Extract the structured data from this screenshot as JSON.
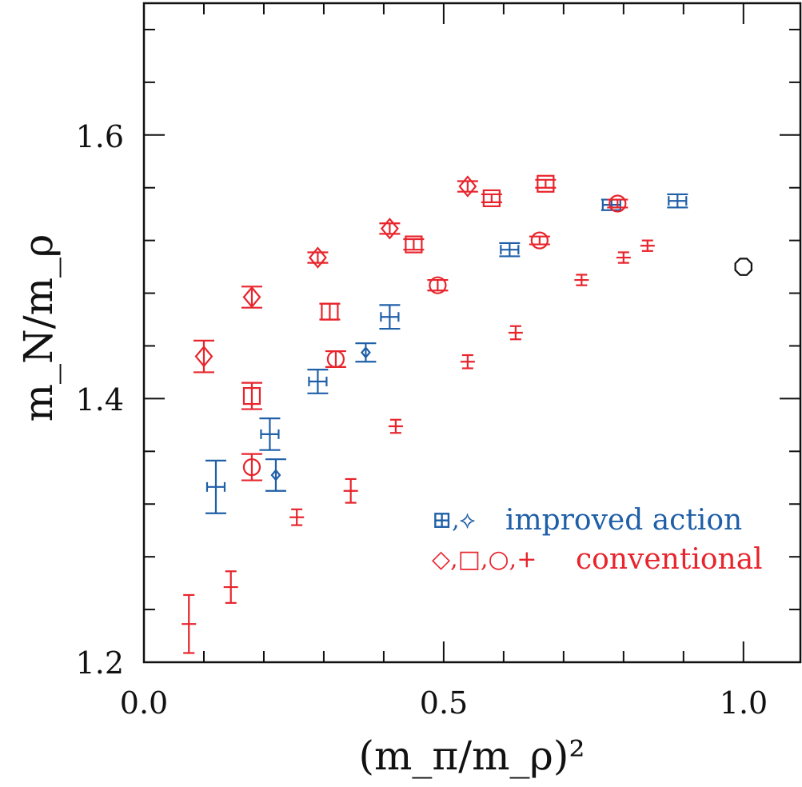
{
  "chart_data": {
    "type": "scatter",
    "xlabel": "(m_π/m_ρ)²",
    "ylabel": "m_N/m_ρ",
    "xlim": [
      0.0,
      1.095
    ],
    "ylim": [
      1.2,
      1.7
    ],
    "x_ticks": [
      "0.0",
      "0.5",
      "1.0"
    ],
    "y_ticks": [
      "1.2",
      "1.4",
      "1.6"
    ],
    "grid": false,
    "legend_position": "bottom-right",
    "legend": [
      {
        "symbols": "⊞,⟡",
        "label": "improved action",
        "color": "#1f5fa8"
      },
      {
        "symbols": "◇,□,○,+",
        "label": "conventional",
        "color": "#e8242c"
      }
    ],
    "series": [
      {
        "marker": "cross-box",
        "color": "#1f5fa8",
        "points": [
          {
            "x": 0.12,
            "y": 1.333,
            "err": 0.02
          },
          {
            "x": 0.21,
            "y": 1.373,
            "err": 0.012
          },
          {
            "x": 0.29,
            "y": 1.413,
            "err": 0.009
          },
          {
            "x": 0.41,
            "y": 1.462,
            "err": 0.009
          },
          {
            "x": 0.61,
            "y": 1.513,
            "err": 0.005
          },
          {
            "x": 0.78,
            "y": 1.547,
            "err": 0.004
          },
          {
            "x": 0.89,
            "y": 1.55,
            "err": 0.005
          }
        ]
      },
      {
        "marker": "diamond-small",
        "color": "#1f5fa8",
        "points": [
          {
            "x": 0.22,
            "y": 1.342,
            "err": 0.012
          },
          {
            "x": 0.37,
            "y": 1.435,
            "err": 0.007
          }
        ]
      },
      {
        "marker": "diamond",
        "color": "#e8242c",
        "points": [
          {
            "x": 0.1,
            "y": 1.432,
            "err": 0.012
          },
          {
            "x": 0.18,
            "y": 1.477,
            "err": 0.008
          },
          {
            "x": 0.29,
            "y": 1.507,
            "err": 0.004
          },
          {
            "x": 0.41,
            "y": 1.529,
            "err": 0.004
          },
          {
            "x": 0.54,
            "y": 1.561,
            "err": 0.004
          }
        ]
      },
      {
        "marker": "square",
        "color": "#e8242c",
        "points": [
          {
            "x": 0.18,
            "y": 1.402,
            "err": 0.01
          },
          {
            "x": 0.31,
            "y": 1.466,
            "err": 0.006
          },
          {
            "x": 0.45,
            "y": 1.517,
            "err": 0.004
          },
          {
            "x": 0.58,
            "y": 1.552,
            "err": 0.003
          },
          {
            "x": 0.67,
            "y": 1.563,
            "err": 0.003
          }
        ]
      },
      {
        "marker": "circle",
        "color": "#e8242c",
        "points": [
          {
            "x": 0.18,
            "y": 1.348,
            "err": 0.01
          },
          {
            "x": 0.32,
            "y": 1.43,
            "err": 0.006
          },
          {
            "x": 0.49,
            "y": 1.486,
            "err": 0.004
          },
          {
            "x": 0.66,
            "y": 1.52,
            "err": 0.003
          },
          {
            "x": 0.79,
            "y": 1.548,
            "err": 0.003
          }
        ]
      },
      {
        "marker": "plus",
        "color": "#e8242c",
        "points": [
          {
            "x": 0.075,
            "y": 1.229,
            "err": 0.022
          },
          {
            "x": 0.145,
            "y": 1.257,
            "err": 0.012
          },
          {
            "x": 0.255,
            "y": 1.31,
            "err": 0.006
          },
          {
            "x": 0.345,
            "y": 1.33,
            "err": 0.009
          },
          {
            "x": 0.42,
            "y": 1.379,
            "err": 0.005
          },
          {
            "x": 0.54,
            "y": 1.428,
            "err": 0.005
          },
          {
            "x": 0.62,
            "y": 1.45,
            "err": 0.005
          },
          {
            "x": 0.73,
            "y": 1.49,
            "err": 0.004
          },
          {
            "x": 0.8,
            "y": 1.507,
            "err": 0.004
          },
          {
            "x": 0.84,
            "y": 1.516,
            "err": 0.004
          }
        ]
      },
      {
        "marker": "octagon",
        "color": "#111111",
        "points": [
          {
            "x": 1.0,
            "y": 1.5,
            "err": 0
          }
        ]
      }
    ]
  }
}
